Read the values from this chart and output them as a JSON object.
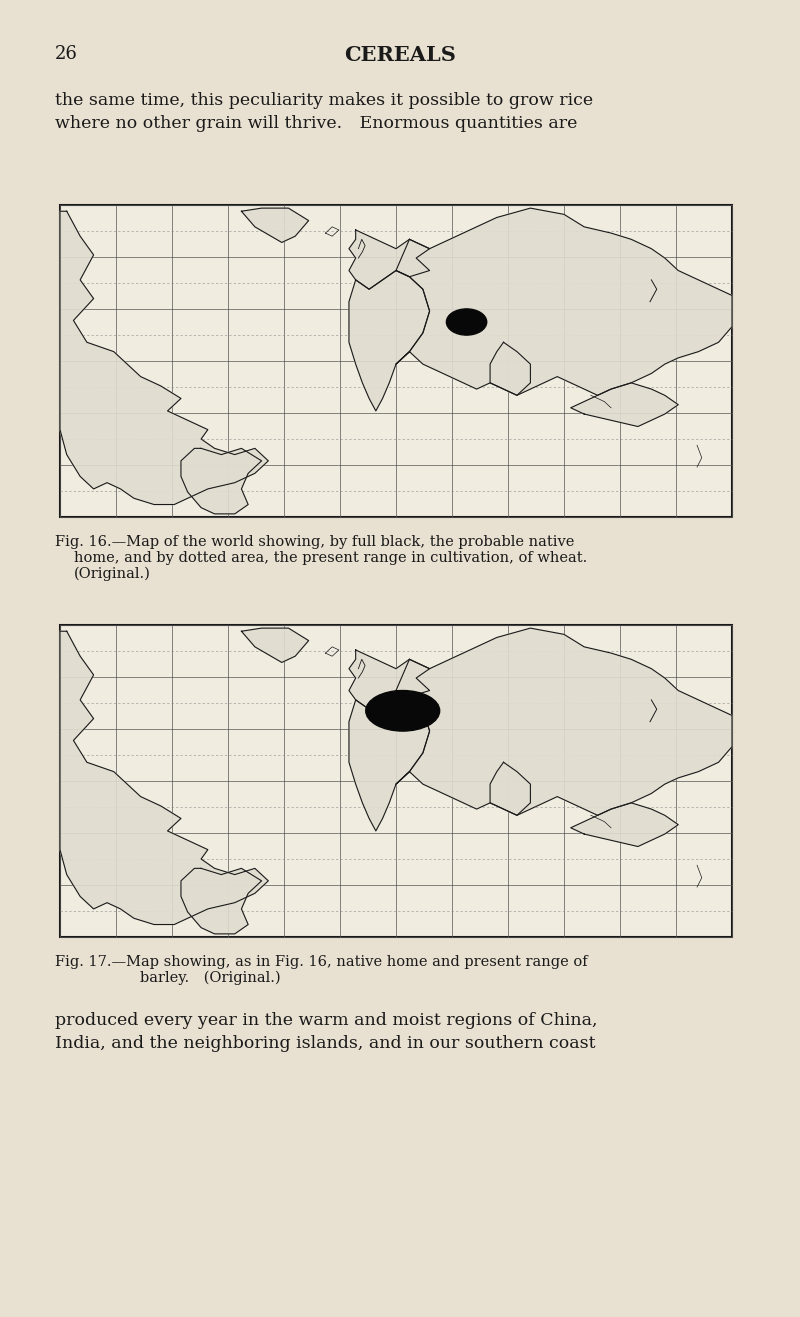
{
  "background_color": "#e8e0d0",
  "page_number": "26",
  "page_header": "CEREALS",
  "top_text_line1": "the same time, this peculiarity makes it possible to grow rice",
  "top_text_line2": "where no other grain will thrive. Enormous quantities are",
  "bottom_text_line1": "produced every year in the warm and moist regions of China,",
  "bottom_text_line2": "India, and the neighboring islands, and in our southern coast",
  "fig16_caption_line1": "Fig. 16.—Map of the world showing, by full black, the probable native",
  "fig16_caption_line2": "home, and by dotted area, the present range in cultivation, of wheat.",
  "fig16_caption_line3": "(Original.)",
  "fig17_caption_line1": "Fig. 17.—Map showing, as in Fig. 16, native home and present range of",
  "fig17_caption_line2": "barley. (Original.)",
  "text_color": "#1a1a1a",
  "map_bg": "#f0ece0",
  "map_border": "#1a1a1a",
  "map_grid_color": "#555555",
  "map_grid_dashed_color": "#888888"
}
